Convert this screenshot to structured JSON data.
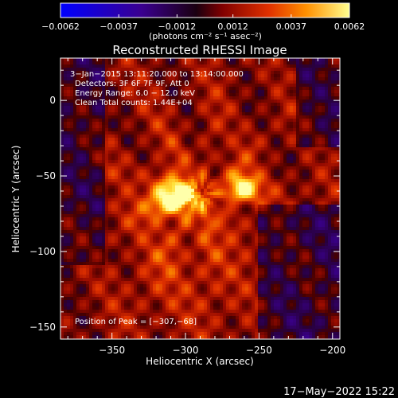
{
  "chart_data": {
    "type": "heatmap",
    "title": "Reconstructed RHESSI Image",
    "xlabel": "Heliocentric X (arcsec)",
    "ylabel": "Heliocentric Y (arcsec)",
    "xlim": [
      -385,
      -195
    ],
    "ylim": [
      -158,
      28
    ],
    "xticks": [
      -350,
      -300,
      -250,
      -200
    ],
    "xtick_labels": [
      "−350",
      "−300",
      "−250",
      "−200"
    ],
    "yticks": [
      0,
      -50,
      -100,
      -150
    ],
    "ytick_labels": [
      "0",
      "−50",
      "−100",
      "−150"
    ],
    "colorbar": {
      "range": [
        -0.0062,
        0.0062
      ],
      "ticks": [
        -0.0062,
        -0.0037,
        -0.0012,
        0.0012,
        0.0037,
        0.0062
      ],
      "tick_labels": [
        "−0.0062",
        "−0.0037",
        "−0.0012",
        "0.0012",
        "0.0037",
        "0.0062"
      ],
      "unit_label": "(photons cm⁻² s⁻¹ asec⁻²)",
      "colors": [
        "#0000ff",
        "#3a0090",
        "#1a0010",
        "#800000",
        "#e03000",
        "#ff9000",
        "#ffff90"
      ]
    },
    "annotations": [
      "3−Jan−2015 13:11:20.000 to 13:14:00.000",
      "Detectors: 3F 6F 7F 9F, Att 0",
      "Energy Range: 6.0 − 12.0 keV",
      "Clean     Total counts: 1.44E+04"
    ],
    "peak_label": "Position of Peak = [−307,−68]",
    "sources": [
      {
        "x": -309,
        "y": -64,
        "value": 0.0062
      },
      {
        "x": -262,
        "y": -57,
        "value": 0.0052
      }
    ]
  },
  "timestamp": "17−May−2022 15:22"
}
